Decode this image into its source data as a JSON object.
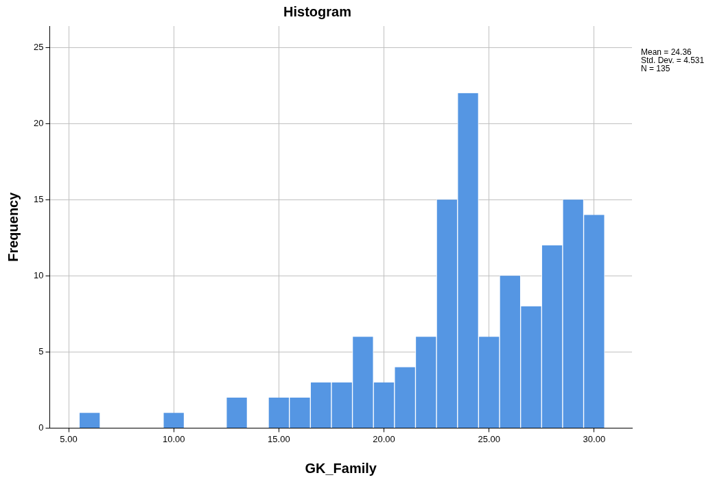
{
  "chart_data": {
    "type": "histogram",
    "title": "Histogram",
    "xlabel": "GK_Family",
    "ylabel": "Frequency",
    "bins": [
      5.5,
      6.5,
      7.5,
      8.5,
      9.5,
      10.5,
      11.5,
      12.5,
      13.5,
      14.5,
      15.5,
      16.5,
      17.5,
      18.5,
      19.5,
      20.5,
      21.5,
      22.5,
      23.5,
      24.5,
      25.5,
      26.5,
      27.5,
      28.5,
      29.5,
      30.5
    ],
    "values": [
      1,
      0,
      0,
      0,
      1,
      0,
      0,
      2,
      0,
      2,
      2,
      3,
      3,
      6,
      3,
      4,
      6,
      15,
      22,
      6,
      10,
      8,
      12,
      15,
      14
    ],
    "color": "#5596e3",
    "xlim": [
      4.1,
      31.8
    ],
    "xticks": [
      {
        "value": 5,
        "label": "5.00"
      },
      {
        "value": 10,
        "label": "10.00"
      },
      {
        "value": 15,
        "label": "15.00"
      },
      {
        "value": 20,
        "label": "20.00"
      },
      {
        "value": 25,
        "label": "25.00"
      },
      {
        "value": 30,
        "label": "30.00"
      }
    ],
    "ylim": [
      0,
      26.4
    ],
    "yticks": [
      0,
      5,
      10,
      15,
      20,
      25
    ],
    "grid": true,
    "legend": false,
    "annotations": [
      "Mean = 24.36",
      "Std. Dev. = 4.531",
      "N = 135"
    ]
  }
}
